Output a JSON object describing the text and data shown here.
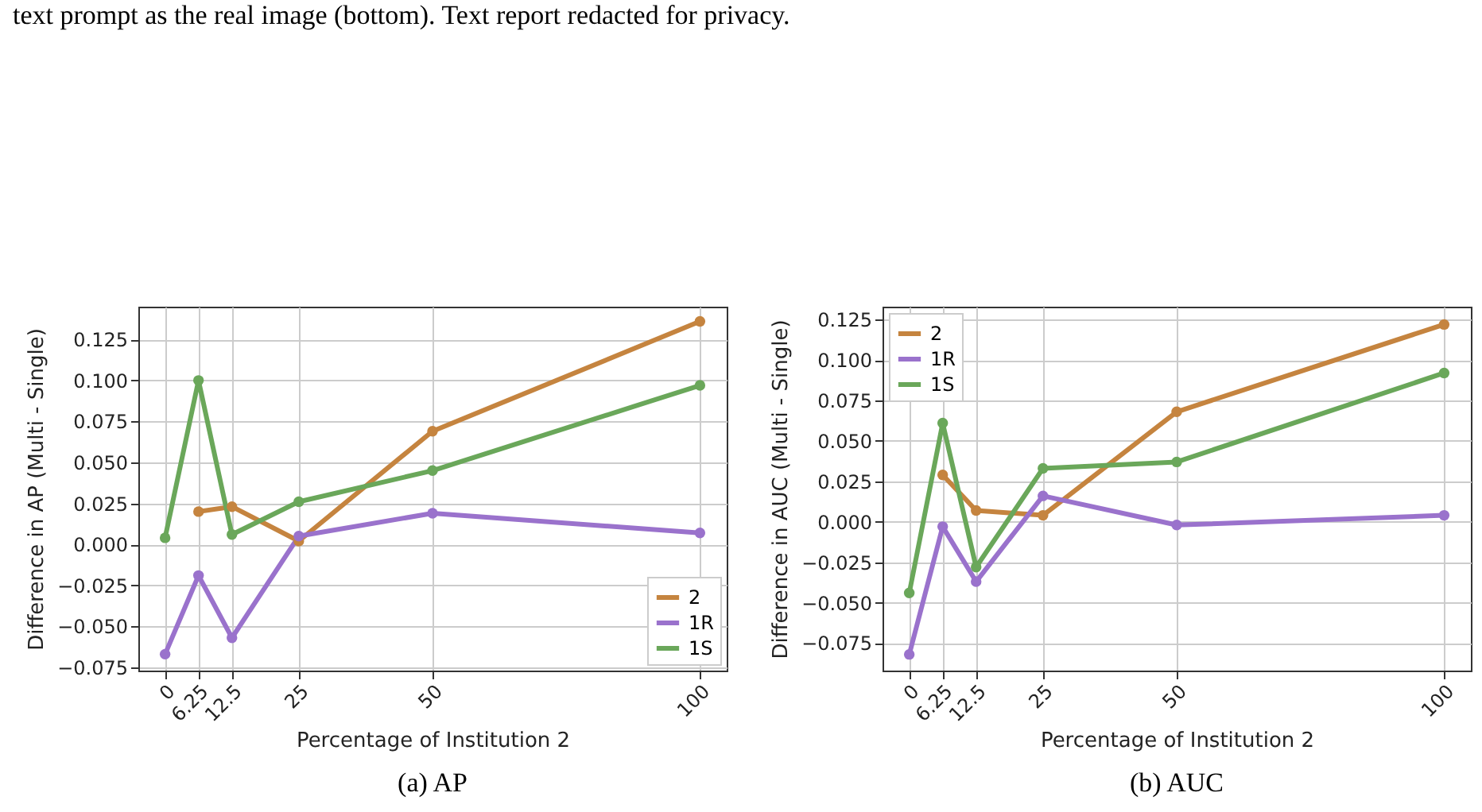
{
  "chart_data": [
    {
      "type": "line",
      "xlabel": "Percentage of Institution 2",
      "ylabel": "Difference in AP (Multi - Single)",
      "annotations": [
        "text prompt as the real image (bottom). Text report redacted for privacy.",
        "(a) AP"
      ],
      "x": [
        0,
        6.25,
        12.5,
        25,
        50,
        100
      ],
      "series": [
        {
          "name": "2",
          "color": "#c5843f",
          "values": [
            null,
            0.02,
            0.023,
            0.002,
            0.069,
            0.136
          ]
        },
        {
          "name": "1R",
          "color": "#9a72cc",
          "values": [
            -0.067,
            -0.019,
            -0.057,
            0.005,
            0.019,
            0.007
          ]
        },
        {
          "name": "1S",
          "color": "#6aa75a",
          "values": [
            0.004,
            0.1,
            0.006,
            0.026,
            0.045,
            0.097
          ]
        }
      ],
      "xlim": [
        -5,
        105
      ],
      "xticks": [
        0,
        6.25,
        12.5,
        25,
        50,
        100
      ],
      "ylim": [
        -0.077,
        0.145
      ],
      "yticks": [
        {
          "value": -0.075,
          "label": "−0.075"
        },
        {
          "value": -0.05,
          "label": "−0.050"
        },
        {
          "value": -0.025,
          "label": "−0.025"
        },
        {
          "value": 0,
          "label": "0.000"
        },
        {
          "value": 0.025,
          "label": "0.025"
        },
        {
          "value": 0.05,
          "label": "0.050"
        },
        {
          "value": 0.075,
          "label": "0.075"
        },
        {
          "value": 0.1,
          "label": "0.100"
        },
        {
          "value": 0.125,
          "label": "0.125"
        }
      ],
      "grid": true,
      "legend": "bottom right",
      "marker": "circle",
      "line_style": "solid"
    },
    {
      "type": "line",
      "xlabel": "Percentage of Institution 2",
      "ylabel": "Difference in AUC (Multi - Single)",
      "annotations": [
        "(b) AUC"
      ],
      "x": [
        0,
        6.25,
        12.5,
        25,
        50,
        100
      ],
      "series": [
        {
          "name": "2",
          "color": "#c5843f",
          "values": [
            null,
            0.029,
            0.007,
            0.004,
            0.068,
            0.122
          ]
        },
        {
          "name": "1R",
          "color": "#9a72cc",
          "values": [
            -0.082,
            -0.003,
            -0.037,
            0.016,
            -0.002,
            0.004
          ]
        },
        {
          "name": "1S",
          "color": "#6aa75a",
          "values": [
            -0.044,
            0.061,
            -0.028,
            0.033,
            0.037,
            0.092
          ]
        }
      ],
      "xlim": [
        -5,
        105
      ],
      "xticks": [
        0,
        6.25,
        12.5,
        25,
        50,
        100
      ],
      "ylim": [
        -0.092,
        0.133
      ],
      "yticks": [
        {
          "value": -0.075,
          "label": "−0.075"
        },
        {
          "value": -0.05,
          "label": "−0.050"
        },
        {
          "value": -0.025,
          "label": "−0.025"
        },
        {
          "value": 0,
          "label": "0.000"
        },
        {
          "value": 0.025,
          "label": "0.025"
        },
        {
          "value": 0.05,
          "label": "0.050"
        },
        {
          "value": 0.075,
          "label": "0.075"
        },
        {
          "value": 0.1,
          "label": "0.100"
        },
        {
          "value": 0.125,
          "label": "0.125"
        }
      ],
      "grid": true,
      "legend": "top left",
      "marker": "circle",
      "line_style": "solid"
    }
  ]
}
